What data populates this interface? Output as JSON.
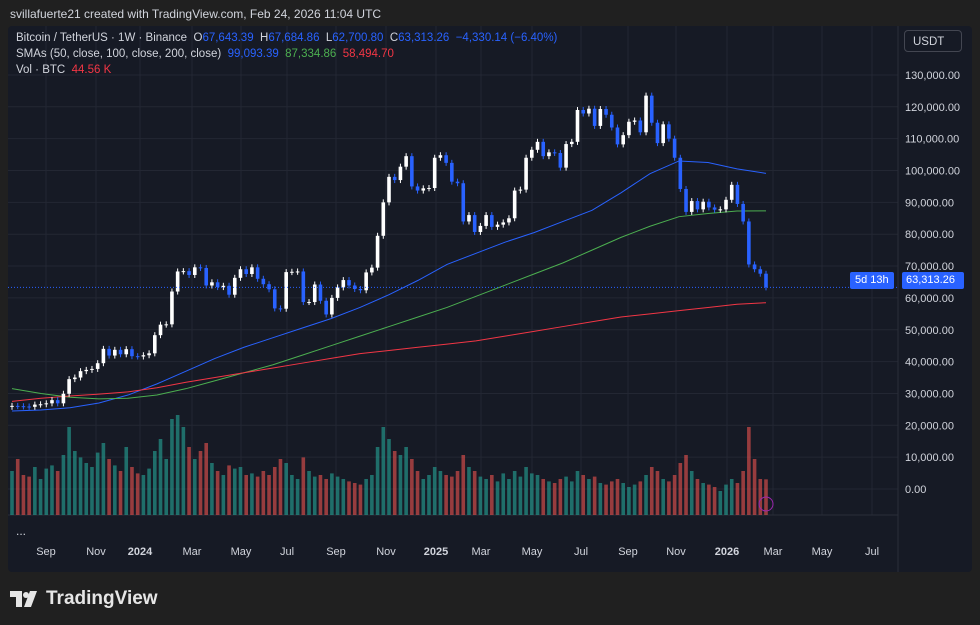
{
  "caption": "svillafuerte21 created with TradingView.com, Feb 24, 2026 11:04 UTC",
  "legend": {
    "symbol": "Bitcoin / TetherUS · 1W · Binance",
    "o_label": "O",
    "o": "67,643.39",
    "h_label": "H",
    "h": "67,684.86",
    "l_label": "L",
    "l": "62,700.80",
    "c_label": "C",
    "c": "63,313.26",
    "change": "−4,330.14 (−6.40%)",
    "sma_label": "SMAs (50, close, 100, close, 200, close)",
    "sma50": "99,093.39",
    "sma100": "87,334.86",
    "sma200": "58,494.70",
    "vol_label": "Vol · BTC",
    "vol": "44.56 K"
  },
  "currency": "USDT",
  "last_price": "63,313.26",
  "countdown": "5d 13h",
  "more": "...",
  "brand": "TradingView",
  "colors": {
    "up": "#ffffff",
    "down": "#2962ff",
    "vol_up": "#26a69a",
    "vol_down": "#ef5350",
    "sma50": "#2962ff",
    "sma100": "#4caf50",
    "sma200": "#f23645",
    "background": "#161a25"
  },
  "chart_data": {
    "type": "candlestick",
    "interval": "1W",
    "ylim": [
      -10000,
      140000
    ],
    "grid": true,
    "y_ticks": [
      "130,000.00",
      "120,000.00",
      "110,000.00",
      "100,000.00",
      "90,000.00",
      "80,000.00",
      "70,000.00",
      "60,000.00",
      "50,000.00",
      "40,000.00",
      "30,000.00",
      "20,000.00",
      "10,000.00",
      "0.00"
    ],
    "x_ticks": [
      "Sep",
      "Nov",
      "2024",
      "Mar",
      "May",
      "Jul",
      "Sep",
      "Nov",
      "2025",
      "Mar",
      "May",
      "Jul",
      "Sep",
      "Nov",
      "2026",
      "Mar",
      "May",
      "Jul"
    ],
    "closes": [
      26100,
      26000,
      25900,
      25800,
      26500,
      26600,
      26900,
      27900,
      26900,
      29900,
      34500,
      35000,
      37000,
      37400,
      37700,
      39500,
      44000,
      41900,
      43700,
      42300,
      43900,
      41700,
      41600,
      42000,
      42600,
      48300,
      51600,
      51700,
      62000,
      68300,
      68400,
      67200,
      69600,
      69400,
      63900,
      64900,
      63400,
      63800,
      61000,
      66300,
      69000,
      67500,
      69600,
      66000,
      64300,
      62700,
      56700,
      56600,
      68100,
      68200,
      68300,
      58700,
      58700,
      64200,
      59100,
      54800,
      60000,
      63300,
      65600,
      63900,
      62800,
      62400,
      68000,
      69500,
      79500,
      90000,
      98000,
      97000,
      101200,
      104500,
      95000,
      93700,
      94400,
      94500,
      104000,
      104800,
      102400,
      96500,
      96000,
      84000,
      86000,
      80700,
      82600,
      86000,
      82300,
      83000,
      83700,
      85000,
      93700,
      94000,
      104000,
      106500,
      109000,
      104500,
      105700,
      105500,
      100900,
      108300,
      109000,
      119000,
      117900,
      119400,
      114000,
      119300,
      117500,
      113500,
      108200,
      111100,
      115300,
      115700,
      112000,
      123500,
      115000,
      108600,
      114500,
      110000,
      104000,
      94200,
      87000,
      90400,
      87800,
      90200,
      88400,
      87700,
      87800,
      90800,
      95500,
      89500,
      84000,
      70500,
      69000,
      67600,
      63313.26
    ],
    "volume_k": [
      55,
      70,
      50,
      48,
      60,
      45,
      58,
      62,
      55,
      75,
      110,
      80,
      72,
      65,
      60,
      78,
      90,
      70,
      62,
      55,
      85,
      60,
      52,
      50,
      58,
      80,
      95,
      70,
      120,
      125,
      110,
      85,
      70,
      80,
      90,
      65,
      55,
      50,
      62,
      58,
      60,
      50,
      52,
      48,
      55,
      50,
      60,
      70,
      65,
      50,
      45,
      72,
      55,
      48,
      50,
      45,
      52,
      48,
      45,
      42,
      40,
      38,
      45,
      50,
      85,
      110,
      95,
      80,
      75,
      85,
      70,
      55,
      45,
      50,
      60,
      55,
      50,
      48,
      55,
      75,
      60,
      55,
      48,
      45,
      50,
      42,
      52,
      45,
      55,
      48,
      60,
      52,
      50,
      45,
      42,
      40,
      45,
      48,
      42,
      55,
      50,
      45,
      48,
      40,
      38,
      42,
      45,
      40,
      35,
      38,
      42,
      50,
      60,
      55,
      45,
      42,
      50,
      65,
      75,
      55,
      45,
      40,
      38,
      35,
      30,
      38,
      45,
      40,
      55,
      110,
      70,
      45,
      44.56
    ],
    "sma50_every5w": [
      24500,
      24800,
      25500,
      27000,
      29500,
      33000,
      37000,
      41000,
      44500,
      47500,
      50500,
      53500,
      57000,
      61000,
      65500,
      70500,
      74000,
      77500,
      80500,
      84000,
      87500,
      93000,
      99000,
      103000,
      102500,
      100500,
      99093
    ],
    "sma100_every5w": [
      31500,
      30000,
      28800,
      28300,
      28500,
      29500,
      31500,
      34000,
      36500,
      39000,
      42000,
      45000,
      48000,
      51000,
      54000,
      57000,
      60500,
      64000,
      67500,
      71000,
      75000,
      79000,
      82500,
      85500,
      86500,
      87300,
      87335
    ],
    "sma200_every5w": [
      27500,
      28500,
      29200,
      29800,
      30500,
      31800,
      33500,
      35000,
      36500,
      38000,
      39500,
      41000,
      42500,
      43500,
      44500,
      45500,
      46500,
      48000,
      49500,
      51000,
      52500,
      54000,
      55000,
      56000,
      57000,
      58000,
      58495
    ]
  }
}
